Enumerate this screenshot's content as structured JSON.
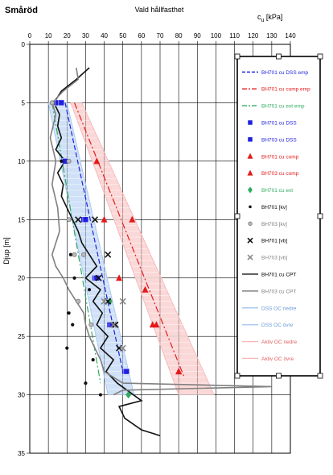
{
  "chart_data": {
    "type": "scatter",
    "site_label": "Småröd",
    "title": "Vald hållfasthet",
    "xlabel": "c",
    "xlabel_sub": "u",
    "xlabel_unit": " [kPa]",
    "ylabel": "Djup [m]",
    "xlim": [
      0,
      140
    ],
    "ylim": [
      35,
      0
    ],
    "x_ticks": [
      0,
      10,
      20,
      30,
      40,
      50,
      60,
      70,
      80,
      90,
      100,
      110,
      120,
      130,
      140
    ],
    "y_ticks": [
      0,
      5,
      10,
      15,
      20,
      25,
      30,
      35
    ],
    "x_axis_position": "top",
    "grid": true,
    "legend_position": "right",
    "colors": {
      "blue": "#1f1fe0",
      "red": "#e31a1c",
      "green": "#2eab5f",
      "dark": "#111111",
      "gray": "#888888",
      "light_blue": "#a9c8f0",
      "light_red": "#f7b8b8"
    },
    "series": [
      {
        "name": "BH701 cu DSS emp",
        "kind": "line",
        "color": "#1f1fe0",
        "dash": "6,3",
        "points": [
          [
            19,
            5
          ],
          [
            50,
            28
          ]
        ]
      },
      {
        "name": "BH701 cu comp emp",
        "kind": "line",
        "color": "#e31a1c",
        "dash": "8,3,2,3",
        "points": [
          [
            24,
            5
          ],
          [
            83,
            28.5
          ]
        ]
      },
      {
        "name": "BH701 cu ext emp",
        "kind": "line",
        "color": "#2eab5f",
        "dash": "8,3,2,3",
        "points": [
          [
            12,
            5
          ],
          [
            38,
            29
          ]
        ]
      },
      {
        "name": "BH701 cu DSS",
        "kind": "marker",
        "marker": "square",
        "color": "#1f1fe0",
        "points": [
          [
            15,
            5
          ],
          [
            19,
            10
          ],
          [
            29,
            15
          ],
          [
            35,
            20
          ],
          [
            43,
            24
          ],
          [
            51,
            28
          ]
        ]
      },
      {
        "name": "BH703 cu DSS",
        "kind": "marker",
        "marker": "square",
        "color": "#1f1fe0",
        "points": [
          [
            17,
            5
          ],
          [
            30,
            15
          ],
          [
            36,
            20
          ],
          [
            44,
            24
          ],
          [
            52,
            28
          ]
        ]
      },
      {
        "name": "BH701 cu comp",
        "kind": "marker",
        "marker": "triangle",
        "color": "#e31a1c",
        "points": [
          [
            36,
            10
          ],
          [
            40,
            15
          ],
          [
            48,
            20
          ],
          [
            66,
            24
          ],
          [
            80,
            28
          ]
        ]
      },
      {
        "name": "BH703 cu comp",
        "kind": "marker",
        "marker": "triangle",
        "color": "#e31a1c",
        "points": [
          [
            55,
            15
          ],
          [
            62,
            21
          ],
          [
            68,
            24
          ],
          [
            80,
            28
          ]
        ]
      },
      {
        "name": "BH701 cu ext",
        "kind": "marker",
        "marker": "diamond",
        "color": "#2eab5f",
        "points": [
          [
            43,
            22
          ],
          [
            53,
            30
          ]
        ]
      },
      {
        "name": "BH701  [kv]",
        "kind": "marker",
        "marker": "dot",
        "color": "#111111",
        "points": [
          [
            17,
            10
          ],
          [
            22,
            18
          ],
          [
            24,
            20
          ],
          [
            32,
            21
          ],
          [
            21,
            23
          ],
          [
            23,
            24
          ],
          [
            20,
            26
          ],
          [
            34,
            27
          ],
          [
            30,
            29
          ],
          [
            38,
            30
          ]
        ]
      },
      {
        "name": "BH703  [kv]",
        "kind": "marker",
        "marker": "circle",
        "color": "#777777",
        "points": [
          [
            12,
            5
          ],
          [
            21,
            10
          ],
          [
            21,
            15
          ],
          [
            24,
            18
          ],
          [
            29,
            18
          ],
          [
            26,
            22
          ],
          [
            33,
            24
          ]
        ]
      },
      {
        "name": "BH701  [vb]",
        "kind": "marker",
        "marker": "x",
        "color": "#111111",
        "points": [
          [
            26,
            15
          ],
          [
            35,
            15
          ],
          [
            42,
            18
          ],
          [
            37,
            20
          ],
          [
            42,
            22
          ],
          [
            46,
            24
          ],
          [
            48,
            26
          ]
        ]
      },
      {
        "name": "BH703  [vb]",
        "kind": "marker",
        "marker": "x",
        "color": "#888888",
        "points": [
          [
            40,
            22
          ],
          [
            45,
            24
          ],
          [
            50,
            22
          ],
          [
            50,
            26
          ]
        ]
      },
      {
        "name": "BH701 cu CPT",
        "kind": "line",
        "color": "#111111",
        "dash": "",
        "points": [
          [
            32,
            2
          ],
          [
            25,
            3
          ],
          [
            17,
            4
          ],
          [
            13,
            5
          ],
          [
            16,
            6
          ],
          [
            15,
            7
          ],
          [
            17,
            8
          ],
          [
            14,
            9
          ],
          [
            19,
            10
          ],
          [
            15,
            11
          ],
          [
            18,
            12
          ],
          [
            17,
            13
          ],
          [
            20,
            14
          ],
          [
            23,
            15
          ],
          [
            26,
            16
          ],
          [
            28,
            17
          ],
          [
            32,
            18
          ],
          [
            36,
            19
          ],
          [
            30,
            20
          ],
          [
            38,
            21
          ],
          [
            34,
            22
          ],
          [
            39,
            23
          ],
          [
            36,
            24
          ],
          [
            42,
            25
          ],
          [
            38,
            26
          ],
          [
            45,
            27
          ],
          [
            41,
            28
          ],
          [
            47,
            29
          ],
          [
            60,
            30.5
          ],
          [
            48,
            31
          ],
          [
            51,
            32
          ],
          [
            60,
            33
          ],
          [
            70,
            33.5
          ]
        ]
      },
      {
        "name": "BH703 cu CPT",
        "kind": "line",
        "color": "#808080",
        "dash": "",
        "points": [
          [
            25,
            2
          ],
          [
            26,
            3
          ],
          [
            18,
            4
          ],
          [
            12,
            5
          ],
          [
            14,
            6
          ],
          [
            11,
            8
          ],
          [
            14,
            10
          ],
          [
            12,
            12
          ],
          [
            15,
            14
          ],
          [
            16,
            16
          ],
          [
            12,
            18
          ],
          [
            14,
            19
          ],
          [
            18,
            20
          ],
          [
            21,
            21
          ],
          [
            25,
            22
          ],
          [
            29,
            23
          ],
          [
            30,
            24
          ],
          [
            32,
            25
          ],
          [
            35,
            26
          ],
          [
            38,
            27
          ],
          [
            40,
            28
          ],
          [
            50,
            29
          ],
          [
            130,
            29.3
          ],
          [
            50,
            29.6
          ],
          [
            45,
            30
          ]
        ]
      }
    ],
    "bands": [
      {
        "name_lower": "DSS OC nedre",
        "name_upper": "DSS OC övre",
        "color": "#a9c8f0",
        "lower": [
          [
            10,
            5
          ],
          [
            42,
            30
          ]
        ],
        "upper": [
          [
            20,
            5
          ],
          [
            56,
            30
          ]
        ]
      },
      {
        "name_lower": "Aktiv OC nedre",
        "name_upper": "Aktiv OC övre",
        "color": "#f7b8b8",
        "lower": [
          [
            22,
            5
          ],
          [
            80,
            30
          ]
        ],
        "upper": [
          [
            28,
            5
          ],
          [
            99,
            30
          ]
        ]
      }
    ],
    "legend": [
      {
        "label": "BH701 cu DSS emp",
        "sym": "line",
        "color": "#1f1fe0",
        "dash": "4,2"
      },
      {
        "label": "BH701 cu comp emp",
        "sym": "line",
        "color": "#e31a1c",
        "dash": "6,2,2,2"
      },
      {
        "label": "BH701 cu ext emp",
        "sym": "line",
        "color": "#2eab5f",
        "dash": "6,2,2,2"
      },
      {
        "label": "BH701 cu DSS",
        "sym": "square",
        "color": "#1f1fe0"
      },
      {
        "label": "BH703 cu DSS",
        "sym": "square",
        "color": "#1f1fe0"
      },
      {
        "label": "BH701 cu comp",
        "sym": "triangle",
        "color": "#e31a1c"
      },
      {
        "label": "BH703 cu comp",
        "sym": "triangle",
        "color": "#e31a1c"
      },
      {
        "label": "BH701 cu ext",
        "sym": "diamond",
        "color": "#2eab5f"
      },
      {
        "label": "BH701  [kv]",
        "sym": "dot",
        "color": "#111111"
      },
      {
        "label": "BH703  [kv]",
        "sym": "circle",
        "color": "#777777"
      },
      {
        "label": "BH701  [vb]",
        "sym": "x",
        "color": "#111111"
      },
      {
        "label": "BH703  [vb]",
        "sym": "x",
        "color": "#888888"
      },
      {
        "label": "BH701 cu CPT",
        "sym": "line",
        "color": "#111111",
        "dash": ""
      },
      {
        "label": "BH703 cu CPT",
        "sym": "line",
        "color": "#808080",
        "dash": ""
      },
      {
        "label": "DSS OC nedre",
        "sym": "line",
        "color": "#a9c8f0",
        "dash": ""
      },
      {
        "label": "DSS OC övre",
        "sym": "line",
        "color": "#a9c8f0",
        "dash": ""
      },
      {
        "label": "Aktiv OC nedre",
        "sym": "line",
        "color": "#f7b8b8",
        "dash": ""
      },
      {
        "label": "Aktiv OC övre",
        "sym": "line",
        "color": "#f7b8b8",
        "dash": ""
      }
    ]
  }
}
